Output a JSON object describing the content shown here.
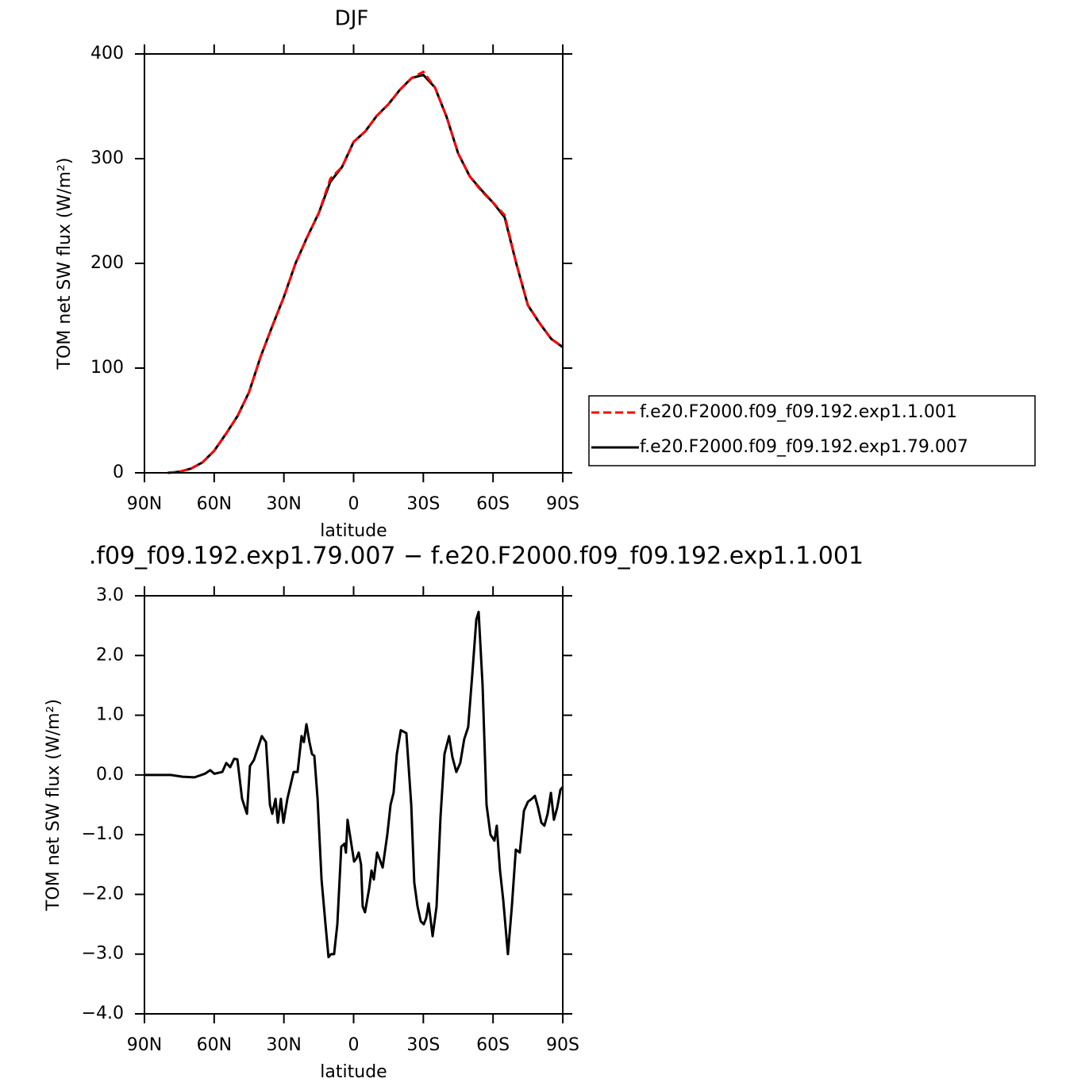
{
  "chart_data": [
    {
      "type": "line",
      "title": "DJF",
      "xlabel": "latitude",
      "ylabel": "TOM net SW flux (W/m²)",
      "x": [
        80,
        75,
        70,
        65,
        60,
        55,
        50,
        45,
        40,
        35,
        30,
        25,
        20,
        15,
        10,
        5,
        0,
        -5,
        -10,
        -15,
        -20,
        -25,
        -30,
        -35,
        -40,
        -45,
        -50,
        -55,
        -60,
        -65,
        -70,
        -75,
        -80,
        -85,
        -90
      ],
      "series": [
        {
          "name": "f.e20.F2000.f09_f09.192.exp1.1.001",
          "color": "#ff0000",
          "line_style": "dashed",
          "values": [
            0,
            1,
            4,
            10,
            21,
            37,
            54,
            77,
            111,
            140,
            168,
            200,
            225,
            248,
            281,
            292,
            316,
            326,
            341,
            352,
            366,
            377,
            383,
            368,
            340,
            305,
            283,
            269,
            258,
            246,
            200,
            160,
            143,
            128,
            120
          ]
        },
        {
          "name": "f.e20.F2000.f09_f09.192.exp1.79.007",
          "color": "#000000",
          "line_style": "solid",
          "values": [
            0,
            1,
            4,
            10,
            21,
            37,
            54,
            77,
            111,
            140,
            168,
            200,
            225,
            248,
            278,
            292,
            316,
            326,
            341,
            352,
            366,
            377,
            380,
            368,
            340,
            305,
            283,
            270,
            258,
            244,
            200,
            160,
            143,
            128,
            120
          ]
        }
      ],
      "xlim": [
        90,
        -90
      ],
      "xticks": [
        {
          "value": 90,
          "label": "90N"
        },
        {
          "value": 60,
          "label": "60N"
        },
        {
          "value": 30,
          "label": "30N"
        },
        {
          "value": 0,
          "label": "0"
        },
        {
          "value": -30,
          "label": "30S"
        },
        {
          "value": -60,
          "label": "60S"
        },
        {
          "value": -90,
          "label": "90S"
        }
      ],
      "ylim": [
        0,
        400
      ],
      "yticks": [
        0,
        100,
        200,
        300,
        400
      ],
      "legend": "right"
    },
    {
      "type": "line",
      "title": ".f09_f09.192.exp1.79.007 − f.e20.F2000.f09_f09.192.exp1.1.001",
      "xlabel": "latitude",
      "ylabel": "TOM net SW flux (W/m²)",
      "x": [
        90,
        78.7,
        73.6,
        68.5,
        64.0,
        61.7,
        59.9,
        56.5,
        54.8,
        53.1,
        51.4,
        50.0,
        48.0,
        45.9,
        44.6,
        42.9,
        41.2,
        39.5,
        37.7,
        36.0,
        35.0,
        33.6,
        32.6,
        31.3,
        30.2,
        28.5,
        25.8,
        24.1,
        22.4,
        21.4,
        20.3,
        19.0,
        17.9,
        16.9,
        15.5,
        13.8,
        12.1,
        10.8,
        9.7,
        8.4,
        7.0,
        5.3,
        3.9,
        3.3,
        2.6,
        1.2,
        -0.2,
        -1.2,
        -2.2,
        -3.2,
        -3.9,
        -4.9,
        -6.7,
        -7.7,
        -8.7,
        -10.1,
        -11.1,
        -12.5,
        -14.5,
        -15.9,
        -17.2,
        -18.6,
        -20.3,
        -22.7,
        -24.8,
        -26.1,
        -27.5,
        -28.9,
        -30.2,
        -31.2,
        -32.3,
        -34.0,
        -35.7,
        -37.4,
        -39.1,
        -41.1,
        -42.5,
        -44.2,
        -45.9,
        -47.6,
        -49.3,
        -51.1,
        -52.8,
        -53.8,
        -55.5,
        -57.2,
        -58.9,
        -60.6,
        -61.6,
        -63.0,
        -64.4,
        -66.4,
        -68.1,
        -69.8,
        -71.5,
        -73.3,
        -75.0,
        -76.7,
        -78.0,
        -79.4,
        -80.8,
        -82.1,
        -83.5,
        -84.9,
        -86.2,
        -87.6,
        -89.0,
        -90
      ],
      "series": [
        {
          "color": "#000000",
          "line_style": "solid",
          "values": [
            0,
            0,
            -0.03,
            -0.04,
            0.02,
            0.08,
            0.02,
            0.05,
            0.2,
            0.13,
            0.27,
            0.26,
            -0.4,
            -0.65,
            0.15,
            0.25,
            0.45,
            0.65,
            0.55,
            -0.5,
            -0.65,
            -0.4,
            -0.8,
            -0.4,
            -0.8,
            -0.4,
            0.05,
            0.05,
            0.65,
            0.55,
            0.85,
            0.55,
            0.35,
            0.32,
            -0.4,
            -1.75,
            -2.5,
            -3.05,
            -3.0,
            -3.0,
            -2.5,
            -1.2,
            -1.15,
            -1.3,
            -0.75,
            -1.1,
            -1.45,
            -1.4,
            -1.3,
            -1.5,
            -2.2,
            -2.3,
            -1.9,
            -1.6,
            -1.75,
            -1.3,
            -1.4,
            -1.55,
            -1.0,
            -0.5,
            -0.3,
            0.35,
            0.75,
            0.7,
            -0.5,
            -1.8,
            -2.2,
            -2.45,
            -2.5,
            -2.4,
            -2.15,
            -2.7,
            -2.2,
            -0.7,
            0.35,
            0.65,
            0.3,
            0.05,
            0.2,
            0.6,
            0.8,
            1.7,
            2.6,
            2.73,
            1.5,
            -0.5,
            -1.0,
            -1.1,
            -0.85,
            -1.6,
            -2.1,
            -3.0,
            -2.2,
            -1.25,
            -1.3,
            -0.6,
            -0.45,
            -0.4,
            -0.35,
            -0.55,
            -0.8,
            -0.85,
            -0.65,
            -0.3,
            -0.75,
            -0.55,
            -0.25,
            -0.2
          ]
        }
      ],
      "xlim": [
        90,
        -90
      ],
      "xticks": [
        {
          "value": 90,
          "label": "90N"
        },
        {
          "value": 60,
          "label": "60N"
        },
        {
          "value": 30,
          "label": "30N"
        },
        {
          "value": 0,
          "label": "0"
        },
        {
          "value": -30,
          "label": "30S"
        },
        {
          "value": -60,
          "label": "60S"
        },
        {
          "value": -90,
          "label": "90S"
        }
      ],
      "ylim": [
        -4,
        3
      ],
      "yticks": [
        {
          "value": -4,
          "label": "−4.0"
        },
        {
          "value": -3,
          "label": "−3.0"
        },
        {
          "value": -2,
          "label": "−2.0"
        },
        {
          "value": -1,
          "label": "−1.0"
        },
        {
          "value": 0,
          "label": "0.0"
        },
        {
          "value": 1,
          "label": "1.0"
        },
        {
          "value": 2,
          "label": "2.0"
        },
        {
          "value": 3,
          "label": "3.0"
        }
      ]
    }
  ]
}
